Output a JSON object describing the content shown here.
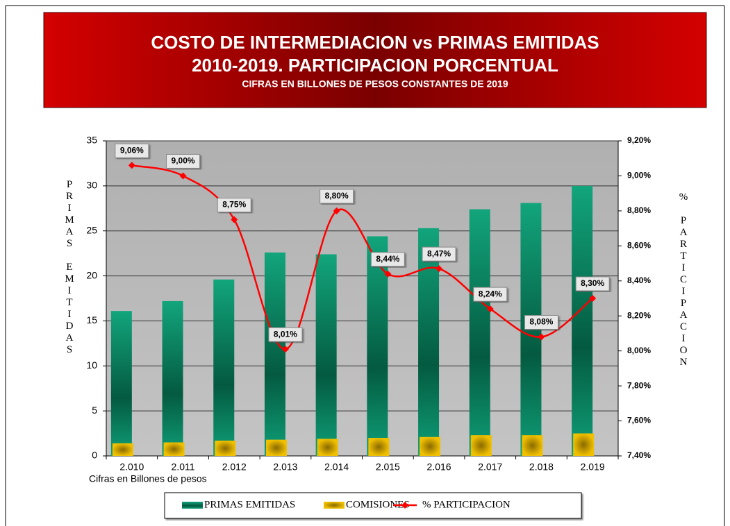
{
  "chart_data": {
    "type": "bar",
    "title": [
      "COSTO DE INTERMEDIACION vs PRIMAS EMITIDAS",
      "2010-2019.  PARTICIPACION PORCENTUAL"
    ],
    "subtitle": "CIFRAS EN BILLONES DE PESOS CONSTANTES DE 2019",
    "ylabel": "PRIMAS EMITIDAS",
    "y2label": "% PARTICIPACION",
    "note": "Cifras en Billones de pesos",
    "categories": [
      "2.010",
      "2.011",
      "2.012",
      "2.013",
      "2.014",
      "2.015",
      "2.016",
      "2.017",
      "2.018",
      "2.019"
    ],
    "series": [
      {
        "name": "PRIMAS EMITIDAS",
        "type": "bar",
        "color": "#0a9a72",
        "values": [
          16.1,
          17.2,
          19.6,
          22.6,
          22.4,
          24.4,
          25.3,
          27.4,
          28.1,
          30.0
        ]
      },
      {
        "name": "COMISIONES",
        "type": "bar",
        "color": "#e0b000",
        "values": [
          1.4,
          1.5,
          1.7,
          1.8,
          1.9,
          2.0,
          2.1,
          2.3,
          2.3,
          2.5
        ]
      },
      {
        "name": "%  PARTICIPACION",
        "type": "line",
        "axis": "y2",
        "color": "#ff0000",
        "values": [
          9.06,
          9.0,
          8.75,
          8.01,
          8.8,
          8.44,
          8.47,
          8.24,
          8.08,
          8.3
        ],
        "value_labels": [
          "9,06%",
          "9,00%",
          "8,75%",
          "8,01%",
          "8,80%",
          "8,44%",
          "8,47%",
          "8,24%",
          "8,08%",
          "8,30%"
        ]
      }
    ],
    "ylim": [
      0,
      35
    ],
    "yticks": [
      0,
      5,
      10,
      15,
      20,
      25,
      30,
      35
    ],
    "y2lim": [
      7.4,
      9.2
    ],
    "y2ticks": [
      {
        "value": 7.4,
        "label": "7,40%"
      },
      {
        "value": 7.6,
        "label": "7,60%"
      },
      {
        "value": 7.8,
        "label": "7,80%"
      },
      {
        "value": 8.0,
        "label": "8,00%"
      },
      {
        "value": 8.2,
        "label": "8,20%"
      },
      {
        "value": 8.4,
        "label": "8,40%"
      },
      {
        "value": 8.6,
        "label": "8,60%"
      },
      {
        "value": 8.8,
        "label": "8,80%"
      },
      {
        "value": 9.0,
        "label": "9,00%"
      },
      {
        "value": 9.2,
        "label": "9,20%"
      }
    ],
    "grid": true
  }
}
